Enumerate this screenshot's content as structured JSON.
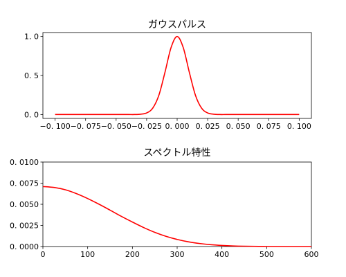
{
  "chart_data": [
    {
      "type": "line",
      "title": "ガウスパルス",
      "xlabel": "",
      "ylabel": "",
      "xlim": [
        -0.11,
        0.11
      ],
      "ylim": [
        -0.05,
        1.05
      ],
      "xticks": [
        -0.1,
        -0.075,
        -0.05,
        -0.025,
        0.0,
        0.025,
        0.05,
        0.075,
        0.1
      ],
      "xtick_labels": [
        "−0. 100",
        "−0. 075",
        "−0. 050",
        "−0. 025",
        "0. 000",
        "0. 025",
        "0. 050",
        "0. 075",
        "0. 100"
      ],
      "yticks": [
        0.0,
        0.5,
        1.0
      ],
      "ytick_labels": [
        "0. 0",
        "0. 5",
        "1. 0"
      ],
      "grid": false,
      "color": "#ff0000",
      "series": [
        {
          "x": [
            -0.1,
            -0.05,
            -0.04,
            -0.035,
            -0.03,
            -0.025,
            -0.02,
            -0.015,
            -0.01,
            -0.005,
            0.0,
            0.005,
            0.01,
            0.015,
            0.02,
            0.025,
            0.03,
            0.035,
            0.04,
            0.05,
            0.1
          ],
          "y": [
            0.0,
            0.0,
            0.0,
            0.0,
            0.004,
            0.02,
            0.082,
            0.246,
            0.539,
            0.857,
            1.0,
            0.857,
            0.539,
            0.246,
            0.082,
            0.02,
            0.004,
            0.0,
            0.0,
            0.0,
            0.0
          ]
        }
      ]
    },
    {
      "type": "line",
      "title": "スペクトル特性",
      "xlabel": "",
      "ylabel": "",
      "xlim": [
        0,
        600
      ],
      "ylim": [
        0.0,
        0.01
      ],
      "xticks": [
        0,
        100,
        200,
        300,
        400,
        500,
        600
      ],
      "xtick_labels": [
        "0",
        "100",
        "200",
        "300",
        "400",
        "500",
        "600"
      ],
      "yticks": [
        0.0,
        0.0025,
        0.005,
        0.0075,
        0.01
      ],
      "ytick_labels": [
        "0. 0000",
        "0. 0025",
        "0. 0050",
        "0. 0075",
        "0. 0100"
      ],
      "grid": false,
      "color": "#ff0000",
      "series": [
        {
          "x": [
            0,
            25,
            50,
            75,
            100,
            125,
            150,
            175,
            200,
            225,
            250,
            275,
            300,
            325,
            350,
            375,
            400,
            425,
            450,
            500,
            550,
            600
          ],
          "y": [
            0.0071,
            0.00699,
            0.00672,
            0.00626,
            0.00568,
            0.00502,
            0.00431,
            0.00358,
            0.0029,
            0.00225,
            0.00168,
            0.00121,
            0.00084,
            0.00056,
            0.00036,
            0.00022,
            0.00013,
            7e-05,
            4e-05,
            1e-05,
            0.0,
            0.0
          ]
        }
      ]
    }
  ]
}
